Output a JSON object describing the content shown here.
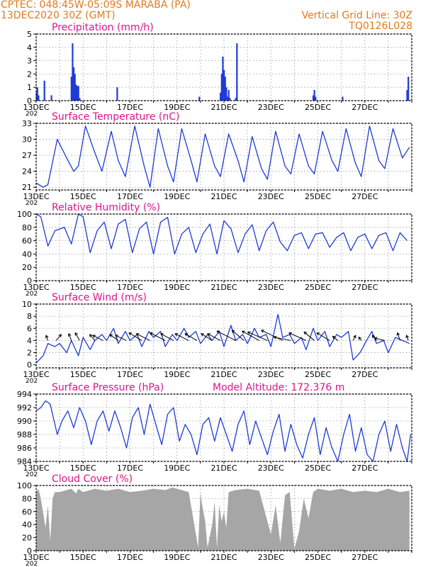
{
  "header": {
    "station": "CPTEC:   048:45W-05:09S   MARABA (PA)",
    "datetime": "13DEC2020 30Z (GMT)",
    "grid_note": "Vertical Grid Line: 30Z",
    "code": "TQ0126L028"
  },
  "colors": {
    "header": "#e07a1f",
    "panel_title": "#e0138c",
    "series": "#1f3bd6",
    "cloud": "#a6a6a6",
    "wind_arrow": "#000000"
  },
  "x_ticks": [
    "13DEC",
    "15DEC",
    "17DEC",
    "19DEC",
    "21DEC",
    "23DEC",
    "25DEC",
    "27DEC"
  ],
  "x_ticks_year_stub": "202",
  "chart_data": [
    {
      "type": "bar",
      "title": "Precipitation (mm/h)",
      "ylim": [
        0,
        5
      ],
      "yticks": [
        0,
        1,
        2,
        3,
        4,
        5
      ],
      "x_unit": "days since 13DEC",
      "x": [
        0.02,
        0.05,
        0.1,
        0.35,
        0.65,
        1.5,
        1.55,
        1.6,
        1.65,
        1.7,
        1.75,
        1.8,
        1.85,
        3.45,
        6.95,
        7.85,
        7.9,
        7.95,
        8.0,
        8.05,
        8.1,
        8.15,
        8.2,
        8.25,
        8.5,
        8.55,
        11.8,
        11.85,
        11.9,
        13.05,
        15.8,
        15.85
      ],
      "values": [
        0.6,
        1.0,
        0.4,
        1.5,
        0.4,
        1.8,
        4.3,
        2.5,
        2.0,
        1.2,
        1.1,
        1.1,
        0.2,
        1.0,
        0.3,
        0.6,
        2.0,
        3.3,
        2.3,
        1.8,
        1.0,
        0.3,
        0.8,
        0.2,
        0.2,
        4.3,
        0.4,
        0.8,
        0.3,
        0.3,
        0.8,
        1.8
      ]
    },
    {
      "type": "line",
      "title": "Surface Temperature (nC)",
      "ylim": [
        20.5,
        33
      ],
      "yticks": [
        21,
        24,
        27,
        30,
        33
      ],
      "x_unit": "days since 13DEC",
      "x": [
        0.0,
        0.3,
        0.5,
        0.9,
        1.3,
        1.6,
        1.8,
        2.1,
        2.5,
        2.8,
        3.2,
        3.5,
        3.8,
        4.2,
        4.6,
        4.85,
        5.2,
        5.6,
        5.85,
        6.2,
        6.6,
        6.85,
        7.2,
        7.6,
        7.85,
        8.2,
        8.6,
        8.85,
        9.2,
        9.6,
        9.85,
        10.2,
        10.6,
        10.85,
        11.2,
        11.6,
        11.85,
        12.2,
        12.6,
        12.85,
        13.2,
        13.6,
        13.85,
        14.2,
        14.6,
        14.85,
        15.2,
        15.6,
        15.9
      ],
      "values": [
        21.8,
        21.0,
        21.5,
        30.0,
        26.5,
        24.0,
        25.0,
        32.5,
        27.5,
        24.0,
        31.5,
        26.0,
        23.0,
        32.5,
        25.0,
        21.0,
        32.0,
        25.0,
        22.0,
        32.0,
        26.0,
        22.0,
        31.0,
        25.0,
        23.0,
        31.0,
        26.0,
        22.0,
        30.5,
        24.5,
        22.5,
        31.5,
        25.0,
        23.5,
        31.0,
        25.0,
        23.5,
        31.5,
        26.0,
        24.0,
        32.0,
        25.5,
        23.0,
        32.5,
        26.0,
        24.5,
        32.0,
        26.5,
        28.5
      ]
    },
    {
      "type": "line",
      "title": "Relative Humidity (%)",
      "ylim": [
        0,
        100
      ],
      "yticks": [
        0,
        20,
        40,
        60,
        80,
        100
      ],
      "x_unit": "days since 13DEC",
      "x": [
        0.0,
        0.2,
        0.5,
        0.8,
        1.2,
        1.5,
        1.8,
        2.0,
        2.3,
        2.6,
        2.9,
        3.2,
        3.5,
        3.8,
        4.1,
        4.4,
        4.7,
        5.0,
        5.3,
        5.6,
        5.9,
        6.2,
        6.5,
        6.8,
        7.1,
        7.4,
        7.7,
        8.0,
        8.3,
        8.6,
        8.9,
        9.2,
        9.5,
        9.8,
        10.1,
        10.4,
        10.7,
        11.0,
        11.3,
        11.6,
        11.9,
        12.2,
        12.5,
        12.8,
        13.1,
        13.4,
        13.7,
        14.0,
        14.3,
        14.6,
        14.9,
        15.2,
        15.5,
        15.8
      ],
      "values": [
        100,
        96,
        52,
        75,
        80,
        55,
        100,
        96,
        42,
        75,
        88,
        48,
        85,
        92,
        42,
        78,
        88,
        40,
        88,
        95,
        40,
        70,
        80,
        42,
        70,
        85,
        40,
        90,
        78,
        42,
        70,
        84,
        45,
        75,
        88,
        58,
        45,
        68,
        72,
        48,
        70,
        72,
        50,
        65,
        72,
        45,
        65,
        70,
        48,
        68,
        72,
        45,
        72,
        60
      ]
    },
    {
      "type": "line",
      "title": "Surface Wind (m/s)",
      "ylim": [
        -0.5,
        10
      ],
      "yticks": [
        0,
        2,
        4,
        6,
        8,
        10
      ],
      "x_unit": "days since 13DEC",
      "x": [
        0.0,
        0.3,
        0.5,
        0.8,
        1.0,
        1.3,
        1.5,
        1.8,
        2.0,
        2.3,
        2.5,
        2.8,
        3.0,
        3.3,
        3.5,
        3.8,
        4.0,
        4.3,
        4.5,
        4.8,
        5.0,
        5.3,
        5.5,
        5.8,
        6.0,
        6.3,
        6.5,
        6.8,
        7.0,
        7.3,
        7.5,
        7.8,
        8.0,
        8.3,
        8.5,
        8.8,
        9.0,
        9.3,
        9.5,
        9.8,
        10.0,
        10.3,
        10.5,
        10.8,
        11.0,
        11.3,
        11.5,
        11.8,
        12.0,
        12.3,
        12.5,
        12.8,
        13.0,
        13.3,
        13.5,
        13.8,
        14.0,
        14.3,
        14.5,
        14.8,
        15.0,
        15.3,
        15.6,
        15.9
      ],
      "values": [
        0.3,
        1.5,
        3.5,
        3.0,
        3.5,
        2.0,
        4.0,
        1.5,
        4.5,
        2.5,
        4.0,
        5.0,
        4.0,
        6.0,
        3.5,
        5.5,
        4.0,
        5.0,
        3.0,
        5.5,
        4.5,
        5.5,
        3.0,
        5.0,
        4.0,
        6.0,
        4.5,
        5.5,
        3.5,
        5.0,
        4.0,
        5.5,
        3.0,
        6.5,
        4.0,
        5.0,
        3.5,
        6.0,
        4.5,
        5.0,
        3.0,
        8.3,
        4.5,
        5.0,
        3.5,
        4.5,
        2.5,
        6.0,
        4.0,
        5.5,
        3.0,
        5.0,
        4.5,
        5.5,
        0.8,
        2.0,
        3.5,
        5.5,
        3.5,
        4.0,
        2.0,
        4.5,
        4.0,
        3.5
      ],
      "wind_vectors": {
        "x_unit": "days since 13DEC",
        "x": [
          0.5,
          0.85,
          1.5,
          1.85,
          2.5,
          2.85,
          3.5,
          3.85,
          4.5,
          4.85,
          5.5,
          5.85,
          6.5,
          6.85,
          7.5,
          7.85,
          8.5,
          8.85,
          9.5,
          9.85,
          10.5,
          10.85,
          11.5,
          11.85,
          12.5,
          12.85,
          13.5,
          13.85,
          14.5,
          14.85,
          15.5,
          15.85
        ],
        "u": [
          -0.2,
          0.6,
          -0.3,
          -0.5,
          -0.6,
          -1.2,
          -1.0,
          -1.3,
          -1.5,
          -1.6,
          -1.8,
          -1.5,
          -1.6,
          -1.4,
          -1.3,
          -1.5,
          -2.2,
          -1.4,
          -2.0,
          -2.3,
          -2.5,
          -2.0,
          -2.0,
          -1.2,
          -1.5,
          -0.6,
          0.3,
          -0.3,
          -0.5,
          -1.2,
          -0.3,
          -0.2
        ],
        "v": [
          0.6,
          0.7,
          0.8,
          0.9,
          0.7,
          0.6,
          0.7,
          0.6,
          0.9,
          0.8,
          0.9,
          0.8,
          0.8,
          0.8,
          0.8,
          0.8,
          1.1,
          1.2,
          1.1,
          1.0,
          1.2,
          0.4,
          0.9,
          1.0,
          0.9,
          0.5,
          0.6,
          0.4,
          0.6,
          0.3,
          0.9,
          0.6
        ]
      }
    },
    {
      "type": "line",
      "title": "Surface Pressure (hPa)",
      "annotation": "Model Altitude: 172.376 m",
      "ylim": [
        984,
        994
      ],
      "yticks": [
        984,
        986,
        988,
        990,
        992,
        994
      ],
      "x_unit": "days since 13DEC",
      "x": [
        0.0,
        0.2,
        0.4,
        0.6,
        0.9,
        1.1,
        1.35,
        1.6,
        1.85,
        2.1,
        2.35,
        2.6,
        2.85,
        3.1,
        3.35,
        3.6,
        3.85,
        4.1,
        4.35,
        4.6,
        4.85,
        5.1,
        5.35,
        5.6,
        5.85,
        6.1,
        6.35,
        6.6,
        6.85,
        7.1,
        7.35,
        7.6,
        7.85,
        8.1,
        8.35,
        8.6,
        8.85,
        9.1,
        9.35,
        9.6,
        9.85,
        10.1,
        10.35,
        10.6,
        10.85,
        11.1,
        11.35,
        11.6,
        11.85,
        12.1,
        12.35,
        12.6,
        12.85,
        13.1,
        13.35,
        13.6,
        13.85,
        14.1,
        14.35,
        14.6,
        14.85,
        15.1,
        15.35,
        15.6,
        15.8,
        15.95
      ],
      "values": [
        991.5,
        992.0,
        993.0,
        992.5,
        988.0,
        990.0,
        991.5,
        989.0,
        992.0,
        990.0,
        986.5,
        990.0,
        991.5,
        988.5,
        991.5,
        989.0,
        986.0,
        990.5,
        992.0,
        988.0,
        992.5,
        989.5,
        986.5,
        991.0,
        992.0,
        987.0,
        989.5,
        988.0,
        985.0,
        989.5,
        990.5,
        987.0,
        990.5,
        988.0,
        985.5,
        989.5,
        991.5,
        986.5,
        990.0,
        987.5,
        985.0,
        988.5,
        991.0,
        985.5,
        989.5,
        986.5,
        984.5,
        988.0,
        990.5,
        985.0,
        989.0,
        986.0,
        984.0,
        988.0,
        991.0,
        985.5,
        989.0,
        985.0,
        984.0,
        988.0,
        990.0,
        985.5,
        989.5,
        986.0,
        984.0,
        988.0
      ]
    },
    {
      "type": "area",
      "title": "Cloud Cover (%)",
      "ylim": [
        0,
        100
      ],
      "yticks": [
        0,
        20,
        40,
        60,
        80,
        100
      ],
      "x_unit": "days since 13DEC",
      "x": [
        0.0,
        0.1,
        0.2,
        0.4,
        0.5,
        0.6,
        0.7,
        0.8,
        1.0,
        1.5,
        1.7,
        1.8,
        2.0,
        2.5,
        3.0,
        3.5,
        4.0,
        4.5,
        5.0,
        5.5,
        5.8,
        6.0,
        6.5,
        6.9,
        7.0,
        7.05,
        7.2,
        7.3,
        7.5,
        7.6,
        7.7,
        7.8,
        7.9,
        8.0,
        8.1,
        8.2,
        8.5,
        9.0,
        9.5,
        10.0,
        10.2,
        10.4,
        10.6,
        10.8,
        11.0,
        11.2,
        11.4,
        11.6,
        11.8,
        12.0,
        12.5,
        13.0,
        13.5,
        14.0,
        14.5,
        15.0,
        15.5,
        15.9
      ],
      "values": [
        90,
        95,
        80,
        35,
        70,
        15,
        80,
        90,
        90,
        95,
        88,
        95,
        90,
        95,
        92,
        95,
        90,
        92,
        95,
        93,
        97,
        95,
        90,
        5,
        90,
        75,
        45,
        5,
        40,
        75,
        5,
        70,
        45,
        60,
        35,
        90,
        93,
        95,
        92,
        25,
        70,
        12,
        85,
        90,
        3,
        30,
        80,
        50,
        90,
        95,
        92,
        95,
        90,
        92,
        90,
        95,
        90,
        92
      ]
    }
  ]
}
